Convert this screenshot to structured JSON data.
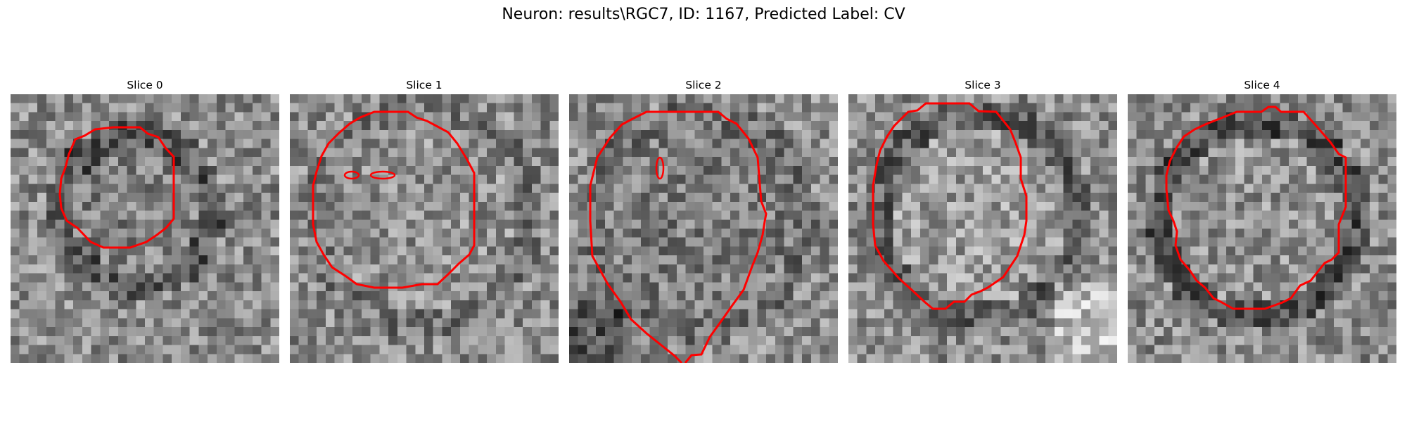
{
  "figure": {
    "title": "Neuron: results\\RGC7, ID: 1167, Predicted Label: CV"
  },
  "panels": [
    {
      "title": "Slice 0",
      "contour_color": "#ff0000"
    },
    {
      "title": "Slice 1",
      "contour_color": "#ff0000"
    },
    {
      "title": "Slice 2",
      "contour_color": "#ff0000"
    },
    {
      "title": "Slice 3",
      "contour_color": "#ff0000"
    },
    {
      "title": "Slice 4",
      "contour_color": "#ff0000"
    }
  ],
  "colormap": "gray"
}
